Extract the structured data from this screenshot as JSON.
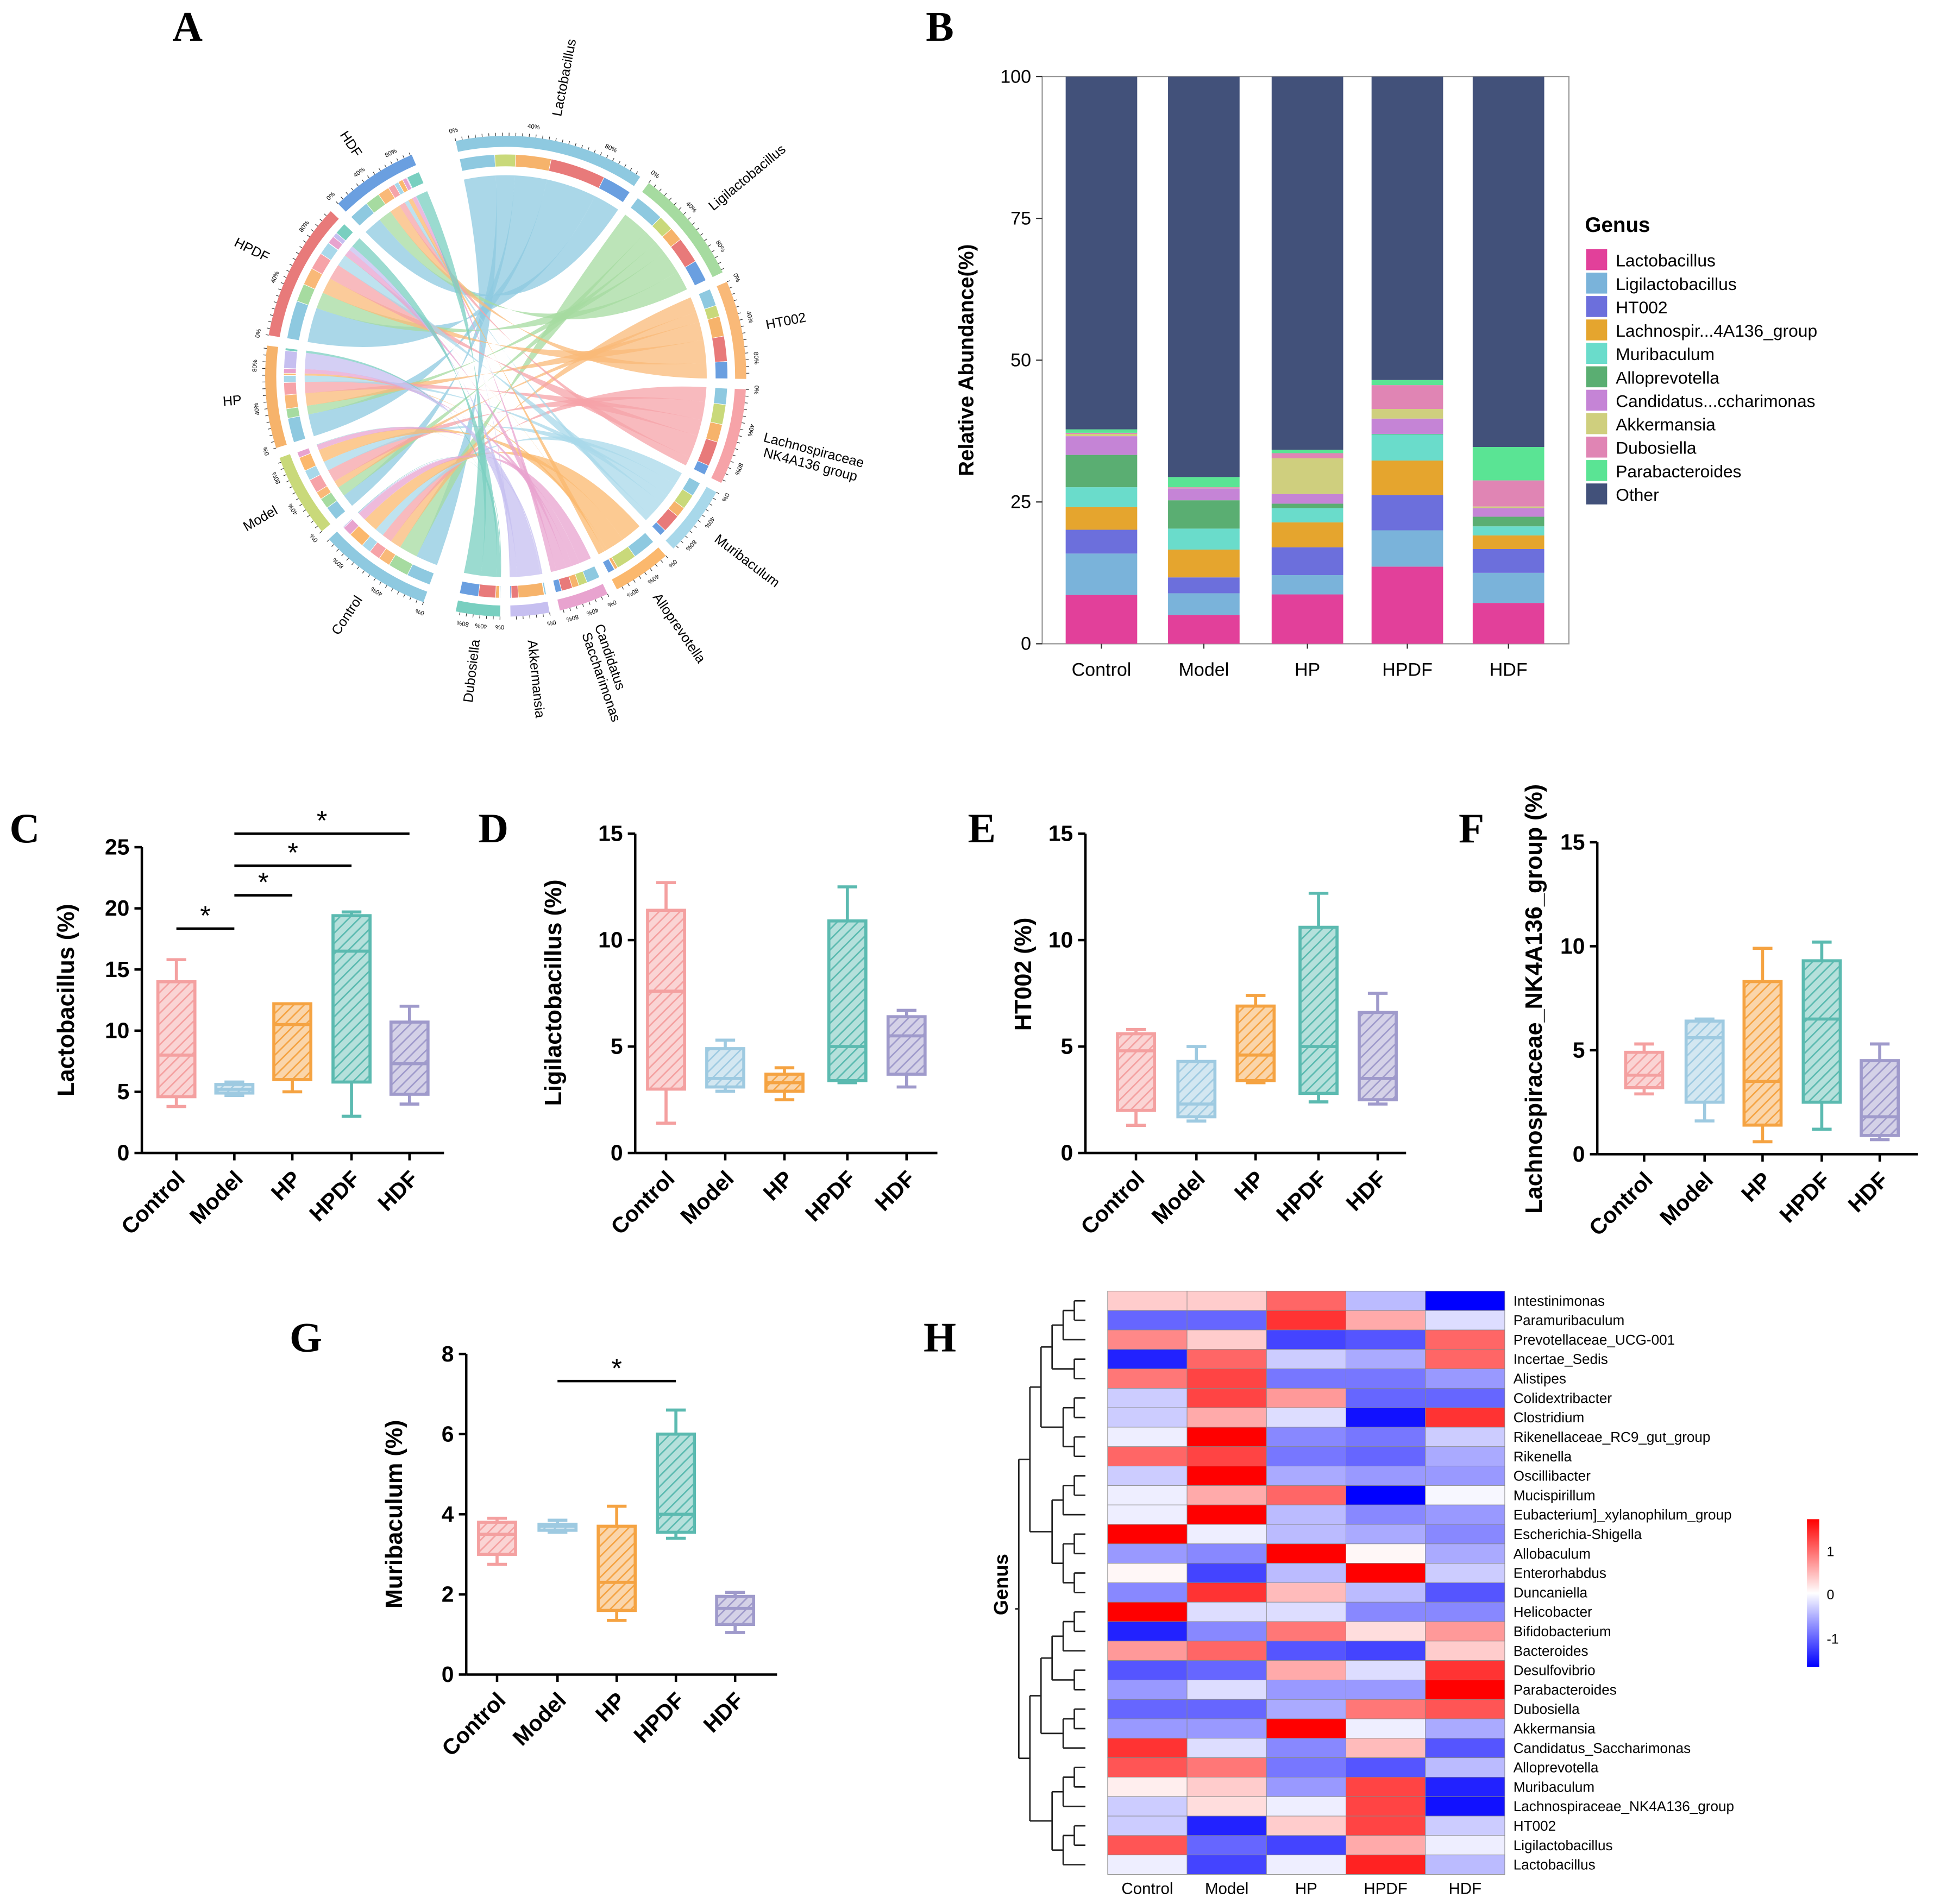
{
  "panel_labels": [
    "A",
    "B",
    "C",
    "D",
    "E",
    "F",
    "G",
    "H"
  ],
  "chart_data": [
    {
      "id": "A",
      "type": "chord",
      "genera": [
        "Lactobacillus",
        "Ligilactobacillus",
        "HT002",
        "Lachnospiraceae NK4A136 group",
        "Muribaculum",
        "Alloprevotella",
        "Candidatus Saccharimonas",
        "Akkermansia",
        "Dubosiella"
      ],
      "genus_colors": [
        "#8ec9e0",
        "#a6dba0",
        "#f9b978",
        "#f6a3a8",
        "#a8d8ea",
        "#fbb86d",
        "#e8a3cf",
        "#c6bff0",
        "#79cfc0"
      ],
      "groups": [
        "Control",
        "Model",
        "HP",
        "HPDF",
        "HDF"
      ],
      "group_colors": [
        "#8ec9e0",
        "#c9d97a",
        "#f6b36b",
        "#e87a7a",
        "#6a9fe0"
      ],
      "tick_labels": [
        "0%",
        "40%",
        "80%"
      ],
      "note": "ribbon weights = relative abundance from panel B"
    },
    {
      "id": "B",
      "type": "bar",
      "stacked": true,
      "categories": [
        "Control",
        "Model",
        "HP",
        "HPDF",
        "HDF"
      ],
      "ylabel": "Relative Abundance(%)",
      "ylim": [
        0,
        100
      ],
      "yticks": [
        "0",
        "25",
        "50",
        "75",
        "100"
      ],
      "legend_title": "Genus",
      "legend_position": "right",
      "series": [
        {
          "name": "Lactobacillus",
          "color": "#e2409a",
          "values": [
            8.6,
            5.1,
            8.7,
            13.6,
            7.2
          ]
        },
        {
          "name": "Ligilactobacillus",
          "color": "#7ab3da",
          "values": [
            7.3,
            3.8,
            3.4,
            6.4,
            5.3
          ]
        },
        {
          "name": "HT002",
          "color": "#6c6fdc",
          "values": [
            4.2,
            2.8,
            4.9,
            6.2,
            4.2
          ]
        },
        {
          "name": "Lachnospir...4A136_group",
          "color": "#e5a52e",
          "values": [
            4.0,
            4.9,
            4.4,
            6.1,
            2.4
          ]
        },
        {
          "name": "Muribaculum",
          "color": "#6adccb",
          "values": [
            3.5,
            3.7,
            2.5,
            4.6,
            1.6
          ]
        },
        {
          "name": "Alloprevotella",
          "color": "#5aae72",
          "values": [
            5.7,
            5.0,
            0.8,
            0.1,
            1.7
          ]
        },
        {
          "name": "Candidatus...ccharimonas",
          "color": "#c584d6",
          "values": [
            3.3,
            2.1,
            1.7,
            2.7,
            1.5
          ]
        },
        {
          "name": "Akkermansia",
          "color": "#cfcf7e",
          "values": [
            0.4,
            0.1,
            6.3,
            1.7,
            0.3
          ]
        },
        {
          "name": "Dubosiella",
          "color": "#e085b4",
          "values": [
            0.2,
            0.1,
            0.9,
            4.2,
            4.6
          ]
        },
        {
          "name": "Parabacteroides",
          "color": "#5ae494",
          "values": [
            0.6,
            1.8,
            0.6,
            0.9,
            5.9
          ]
        },
        {
          "name": "Other",
          "color": "#42517a",
          "values": [
            62.2,
            70.6,
            65.8,
            53.5,
            65.3
          ]
        }
      ]
    },
    {
      "id": "C",
      "type": "box",
      "ylabel": "Lactobacillus (%)",
      "ylim": [
        0,
        25
      ],
      "yticks": [
        "0",
        "5",
        "10",
        "15",
        "20",
        "25"
      ],
      "categories": [
        "Control",
        "Model",
        "HP",
        "HPDF",
        "HDF"
      ],
      "colors": [
        "#f4a0a0",
        "#9ecae1",
        "#f5a342",
        "#5bbab0",
        "#9f9acb"
      ],
      "boxes": [
        [
          3.8,
          4.6,
          8.0,
          14.0,
          15.8
        ],
        [
          4.7,
          4.9,
          5.2,
          5.6,
          5.8
        ],
        [
          5.0,
          6.0,
          10.5,
          12.2,
          12.2
        ],
        [
          3.0,
          5.8,
          16.5,
          19.4,
          19.7
        ],
        [
          4.0,
          4.8,
          7.3,
          10.7,
          12.0
        ]
      ],
      "significance": [
        {
          "groups": [
            "Control",
            "Model"
          ],
          "label": "*"
        },
        {
          "groups": [
            "Model",
            "HP"
          ],
          "label": "*"
        },
        {
          "groups": [
            "Model",
            "HPDF"
          ],
          "label": "*"
        },
        {
          "groups": [
            "Model",
            "HDF"
          ],
          "label": "*"
        }
      ]
    },
    {
      "id": "D",
      "type": "box",
      "ylabel": "Ligilactobacillus (%)",
      "ylim": [
        0,
        15
      ],
      "yticks": [
        "0",
        "5",
        "10",
        "15"
      ],
      "categories": [
        "Control",
        "Model",
        "HP",
        "HPDF",
        "HDF"
      ],
      "colors": [
        "#f4a0a0",
        "#9ecae1",
        "#f5a342",
        "#5bbab0",
        "#9f9acb"
      ],
      "boxes": [
        [
          1.4,
          3.0,
          7.6,
          11.4,
          12.7
        ],
        [
          2.9,
          3.1,
          3.5,
          4.9,
          5.3
        ],
        [
          2.5,
          2.9,
          3.3,
          3.7,
          4.0
        ],
        [
          3.3,
          3.4,
          5.0,
          10.9,
          12.5
        ],
        [
          3.1,
          3.7,
          5.5,
          6.4,
          6.7
        ]
      ],
      "significance": []
    },
    {
      "id": "E",
      "type": "box",
      "ylabel": "HT002 (%)",
      "ylim": [
        0,
        15
      ],
      "yticks": [
        "0",
        "5",
        "10",
        "15"
      ],
      "categories": [
        "Control",
        "Model",
        "HP",
        "HPDF",
        "HDF"
      ],
      "colors": [
        "#f4a0a0",
        "#9ecae1",
        "#f5a342",
        "#5bbab0",
        "#9f9acb"
      ],
      "boxes": [
        [
          1.3,
          2.0,
          4.8,
          5.6,
          5.8
        ],
        [
          1.5,
          1.7,
          2.3,
          4.3,
          5.0
        ],
        [
          3.3,
          3.4,
          4.6,
          6.9,
          7.4
        ],
        [
          2.4,
          2.8,
          5.0,
          10.6,
          12.2
        ],
        [
          2.3,
          2.5,
          3.5,
          6.6,
          7.5
        ]
      ],
      "significance": []
    },
    {
      "id": "F",
      "type": "box",
      "ylabel": "Lachnospiraceae_NK4A136_group (%)",
      "ylim": [
        0,
        15
      ],
      "yticks": [
        "0",
        "5",
        "10",
        "15"
      ],
      "categories": [
        "Control",
        "Model",
        "HP",
        "HPDF",
        "HDF"
      ],
      "colors": [
        "#f4a0a0",
        "#9ecae1",
        "#f5a342",
        "#5bbab0",
        "#9f9acb"
      ],
      "boxes": [
        [
          2.9,
          3.2,
          3.8,
          4.9,
          5.3
        ],
        [
          1.6,
          2.5,
          5.6,
          6.4,
          6.5
        ],
        [
          0.6,
          1.4,
          3.5,
          8.3,
          9.9
        ],
        [
          1.2,
          2.5,
          6.5,
          9.3,
          10.2
        ],
        [
          0.7,
          0.9,
          1.8,
          4.5,
          5.3
        ]
      ],
      "significance": []
    },
    {
      "id": "G",
      "type": "box",
      "ylabel": "Muribaculum (%)",
      "ylim": [
        0,
        8
      ],
      "yticks": [
        "0",
        "2",
        "4",
        "6",
        "8"
      ],
      "categories": [
        "Control",
        "Model",
        "HP",
        "HPDF",
        "HDF"
      ],
      "colors": [
        "#f4a0a0",
        "#9ecae1",
        "#f5a342",
        "#5bbab0",
        "#9f9acb"
      ],
      "boxes": [
        [
          2.75,
          3.0,
          3.5,
          3.8,
          3.9
        ],
        [
          3.55,
          3.6,
          3.7,
          3.75,
          3.85
        ],
        [
          1.35,
          1.6,
          2.3,
          3.7,
          4.2
        ],
        [
          3.4,
          3.55,
          4.0,
          6.0,
          6.6
        ],
        [
          1.05,
          1.25,
          1.65,
          1.95,
          2.05
        ]
      ],
      "significance": [
        {
          "groups": [
            "Model",
            "HPDF"
          ],
          "label": "*"
        }
      ]
    },
    {
      "id": "H",
      "type": "heatmap",
      "ylabel": "Genus",
      "columns": [
        "Control",
        "Model",
        "HP",
        "HPDF",
        "HDF"
      ],
      "colorbar_ticks": [
        "1",
        "0",
        "-1"
      ],
      "range": [
        -1.5,
        1.5
      ],
      "rows": [
        "Intestinimonas",
        "Paramuribaculum",
        "Prevotellaceae_UCG-001",
        "Incertae_Sedis",
        "Alistipes",
        "Colidextribacter",
        "Clostridium",
        "Rikenellaceae_RC9_gut_group",
        "Rikenella",
        "Oscillibacter",
        "Mucispirillum",
        "Eubacterium]_xylanophilum_group",
        "Escherichia-Shigella",
        "Allobaculum",
        "Enterorhabdus",
        "Duncaniella",
        "Helicobacter",
        "Bifidobacterium",
        "Bacteroides",
        "Desulfovibrio",
        "Parabacteroides",
        "Dubosiella",
        "Akkermansia",
        "Candidatus_Saccharimonas",
        "Alloprevotella",
        "Muribaculum",
        "Lachnospiraceae_NK4A136_group",
        "HT002",
        "Ligilactobacillus",
        "Lactobacillus"
      ],
      "values": [
        [
          0.3,
          0.3,
          0.9,
          -0.4,
          -1.5
        ],
        [
          -0.9,
          -0.9,
          1.2,
          0.5,
          -0.2
        ],
        [
          0.7,
          0.3,
          -1.1,
          -1.0,
          0.9
        ],
        [
          -1.3,
          0.9,
          -0.3,
          -0.5,
          0.9
        ],
        [
          0.8,
          1.1,
          -0.8,
          -0.8,
          -0.6
        ],
        [
          -0.3,
          1.1,
          0.6,
          -0.9,
          -0.9
        ],
        [
          -0.3,
          0.5,
          -0.2,
          -1.4,
          1.2
        ],
        [
          -0.1,
          1.5,
          -0.7,
          -0.8,
          -0.3
        ],
        [
          0.9,
          1.1,
          -0.8,
          -0.9,
          -0.5
        ],
        [
          -0.3,
          1.5,
          -0.5,
          -0.6,
          -0.6
        ],
        [
          -0.1,
          0.5,
          0.9,
          -1.5,
          -0.05
        ],
        [
          -0.1,
          1.5,
          -0.4,
          -0.7,
          -0.6
        ],
        [
          1.5,
          -0.1,
          -0.4,
          -0.5,
          -0.7
        ],
        [
          -0.6,
          -0.7,
          1.5,
          0.05,
          -0.5
        ],
        [
          0.05,
          -1.1,
          -0.4,
          1.5,
          -0.3
        ],
        [
          -0.7,
          1.2,
          0.4,
          -0.4,
          -1.0
        ],
        [
          1.5,
          -0.2,
          -0.2,
          -0.7,
          -0.7
        ],
        [
          -1.3,
          -0.7,
          0.8,
          0.2,
          0.6
        ],
        [
          0.6,
          0.9,
          -1.0,
          -1.1,
          0.3
        ],
        [
          -1.0,
          -0.9,
          0.5,
          -0.2,
          1.2
        ],
        [
          -0.6,
          -0.2,
          -0.6,
          -0.6,
          1.5
        ],
        [
          -0.9,
          -0.9,
          -0.5,
          0.8,
          1.0
        ],
        [
          -0.6,
          -0.6,
          1.5,
          -0.1,
          -0.5
        ],
        [
          1.2,
          -0.2,
          -0.7,
          0.4,
          -1.0
        ],
        [
          1.0,
          0.8,
          -0.8,
          -1.0,
          -0.4
        ],
        [
          0.1,
          0.3,
          -0.6,
          1.1,
          -1.3
        ],
        [
          -0.3,
          0.2,
          -0.1,
          1.1,
          -1.4
        ],
        [
          -0.3,
          -1.3,
          0.3,
          1.1,
          -0.3
        ],
        [
          1.0,
          -0.9,
          -1.1,
          0.5,
          -0.1
        ],
        [
          -0.1,
          -1.1,
          -0.1,
          1.3,
          -0.4
        ]
      ]
    }
  ]
}
